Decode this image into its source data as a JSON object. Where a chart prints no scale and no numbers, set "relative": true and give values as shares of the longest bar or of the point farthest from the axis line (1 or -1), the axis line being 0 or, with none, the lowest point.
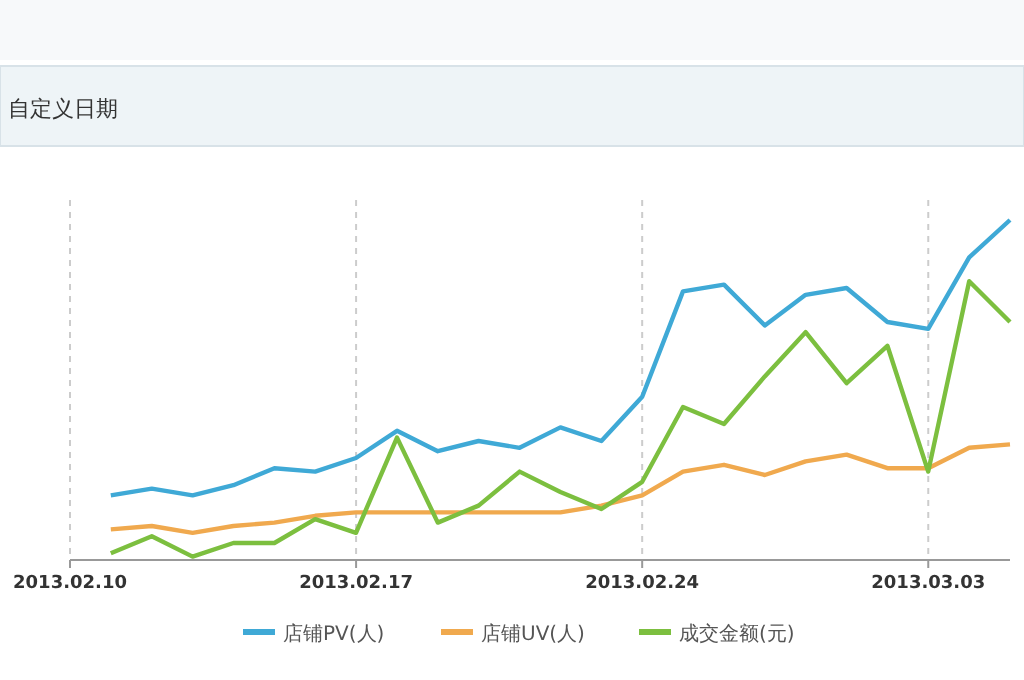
{
  "chart_data": {
    "type": "line",
    "relative": true,
    "annotations": [
      "自定义日期"
    ],
    "x": [
      "2013-02-11",
      "2013-02-12",
      "2013-02-13",
      "2013-02-14",
      "2013-02-15",
      "2013-02-16",
      "2013-02-17",
      "2013-02-18",
      "2013-02-19",
      "2013-02-20",
      "2013-02-21",
      "2013-02-22",
      "2013-02-23",
      "2013-02-24",
      "2013-02-25",
      "2013-02-26",
      "2013-02-27",
      "2013-02-28",
      "2013-03-01",
      "2013-03-02",
      "2013-03-03",
      "2013-03-04",
      "2013-03-05"
    ],
    "xlim": [
      "2013-02-10",
      "2013-03-05"
    ],
    "xticks": [
      {
        "value": "2013-02-10",
        "label": "2013.02.10"
      },
      {
        "value": "2013-02-17",
        "label": "2013.02.17"
      },
      {
        "value": "2013-02-24",
        "label": "2013.02.24"
      },
      {
        "value": "2013-03-03",
        "label": "2013.03.03"
      }
    ],
    "series": [
      {
        "name": "店铺PV(人)",
        "color": "#3fa9d6",
        "values": [
          0.19,
          0.21,
          0.19,
          0.22,
          0.27,
          0.26,
          0.3,
          0.38,
          0.32,
          0.35,
          0.33,
          0.39,
          0.35,
          0.48,
          0.79,
          0.81,
          0.69,
          0.78,
          0.8,
          0.7,
          0.68,
          0.89,
          1
        ]
      },
      {
        "name": "店铺UV(人)",
        "color": "#f0a94e",
        "values": [
          0.09,
          0.1,
          0.08,
          0.1,
          0.11,
          0.13,
          0.14,
          0.14,
          0.14,
          0.14,
          0.14,
          0.14,
          0.16,
          0.19,
          0.26,
          0.28,
          0.25,
          0.29,
          0.31,
          0.27,
          0.27,
          0.33,
          0.34
        ]
      },
      {
        "name": "成交金额(元)",
        "color": "#7cbf3f",
        "values": [
          0.02,
          0.07,
          0.01,
          0.05,
          0.05,
          0.12,
          0.08,
          0.36,
          0.11,
          0.16,
          0.26,
          0.2,
          0.15,
          0.23,
          0.45,
          0.4,
          0.54,
          0.67,
          0.52,
          0.63,
          0.26,
          0.82,
          0.7
        ]
      }
    ],
    "grid": "x",
    "legend": "bottom",
    "marker": "none",
    "line_style": "solid"
  }
}
